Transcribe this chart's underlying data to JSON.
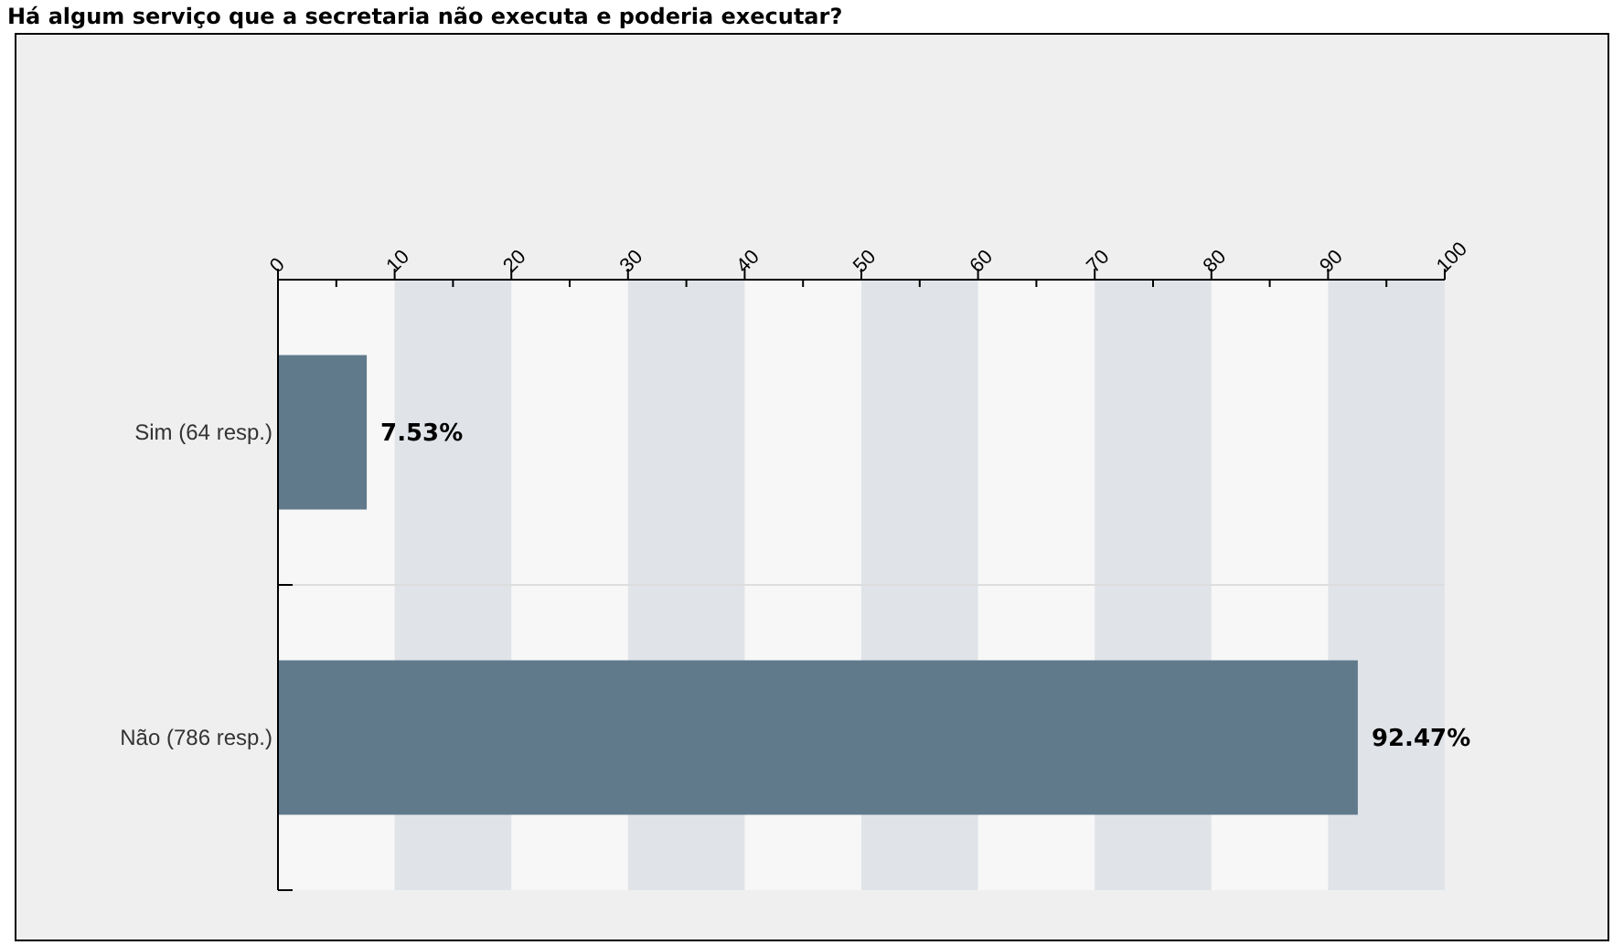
{
  "chart_data": {
    "type": "bar",
    "orientation": "horizontal",
    "title": "Há algum serviço que a secretaria não executa e poderia executar?",
    "categories": [
      "Sim (64 resp.)",
      "Não (786 resp.)"
    ],
    "values": [
      7.53,
      92.47
    ],
    "value_labels": [
      "7.53%",
      "92.47%"
    ],
    "color": "#607a8c",
    "xlim": [
      0,
      100
    ],
    "xticks": [
      0,
      10,
      20,
      30,
      40,
      50,
      60,
      70,
      80,
      90,
      100
    ],
    "bands": [
      {
        "axis": "x",
        "from": 10,
        "to": 20,
        "color": "#e0e4e8"
      },
      {
        "axis": "x",
        "from": 30,
        "to": 40,
        "color": "#e0e4e8"
      },
      {
        "axis": "x",
        "from": 50,
        "to": 60,
        "color": "#e0e4e8"
      },
      {
        "axis": "x",
        "from": 70,
        "to": 80,
        "color": "#e0e4e8"
      },
      {
        "axis": "x",
        "from": 90,
        "to": 100,
        "color": "#e0e4e8"
      }
    ]
  }
}
